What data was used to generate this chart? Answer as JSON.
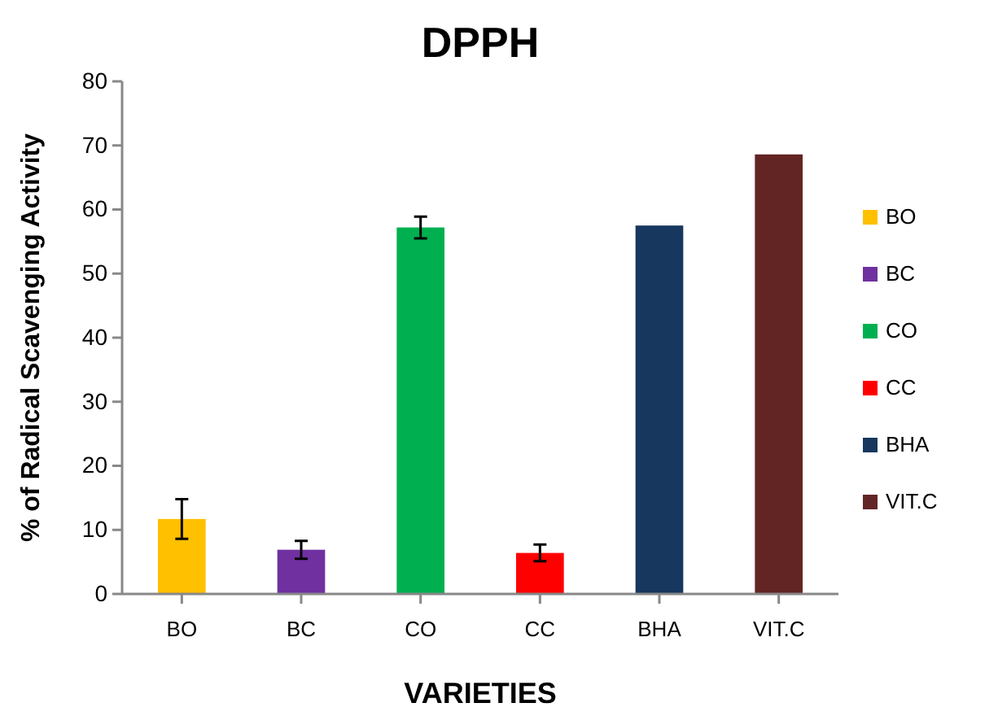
{
  "chart_data": {
    "type": "bar",
    "title": "DPPH",
    "xlabel": "VARIETIES",
    "ylabel": "% of Radical Scavenging Activity",
    "categories": [
      "BO",
      "BC",
      "CO",
      "CC",
      "BHA",
      "VIT.C"
    ],
    "series": [
      {
        "name": "BO",
        "color": "#ffc000",
        "values": [
          11.7,
          null,
          null,
          null,
          null,
          null
        ],
        "errors": [
          3.1,
          null,
          null,
          null,
          null,
          null
        ]
      },
      {
        "name": "BC",
        "color": "#7030a0",
        "values": [
          null,
          6.9,
          null,
          null,
          null,
          null
        ],
        "errors": [
          null,
          1.4,
          null,
          null,
          null,
          null
        ]
      },
      {
        "name": "CO",
        "color": "#00b050",
        "values": [
          null,
          null,
          57.2,
          null,
          null,
          null
        ],
        "errors": [
          null,
          null,
          1.7,
          null,
          null,
          null
        ]
      },
      {
        "name": "CC",
        "color": "#ff0000",
        "values": [
          null,
          null,
          null,
          6.4,
          null,
          null
        ],
        "errors": [
          null,
          null,
          null,
          1.3,
          null,
          null
        ]
      },
      {
        "name": "BHA",
        "color": "#17375e",
        "values": [
          null,
          null,
          null,
          null,
          57.5,
          null
        ]
      },
      {
        "name": "VIT.C",
        "color": "#632523",
        "values": [
          null,
          null,
          null,
          null,
          null,
          68.6
        ]
      }
    ],
    "stacked": true,
    "ylim": [
      0,
      80
    ],
    "yticks": [
      0,
      10,
      20,
      30,
      40,
      50,
      60,
      70,
      80
    ],
    "legend": "right"
  }
}
